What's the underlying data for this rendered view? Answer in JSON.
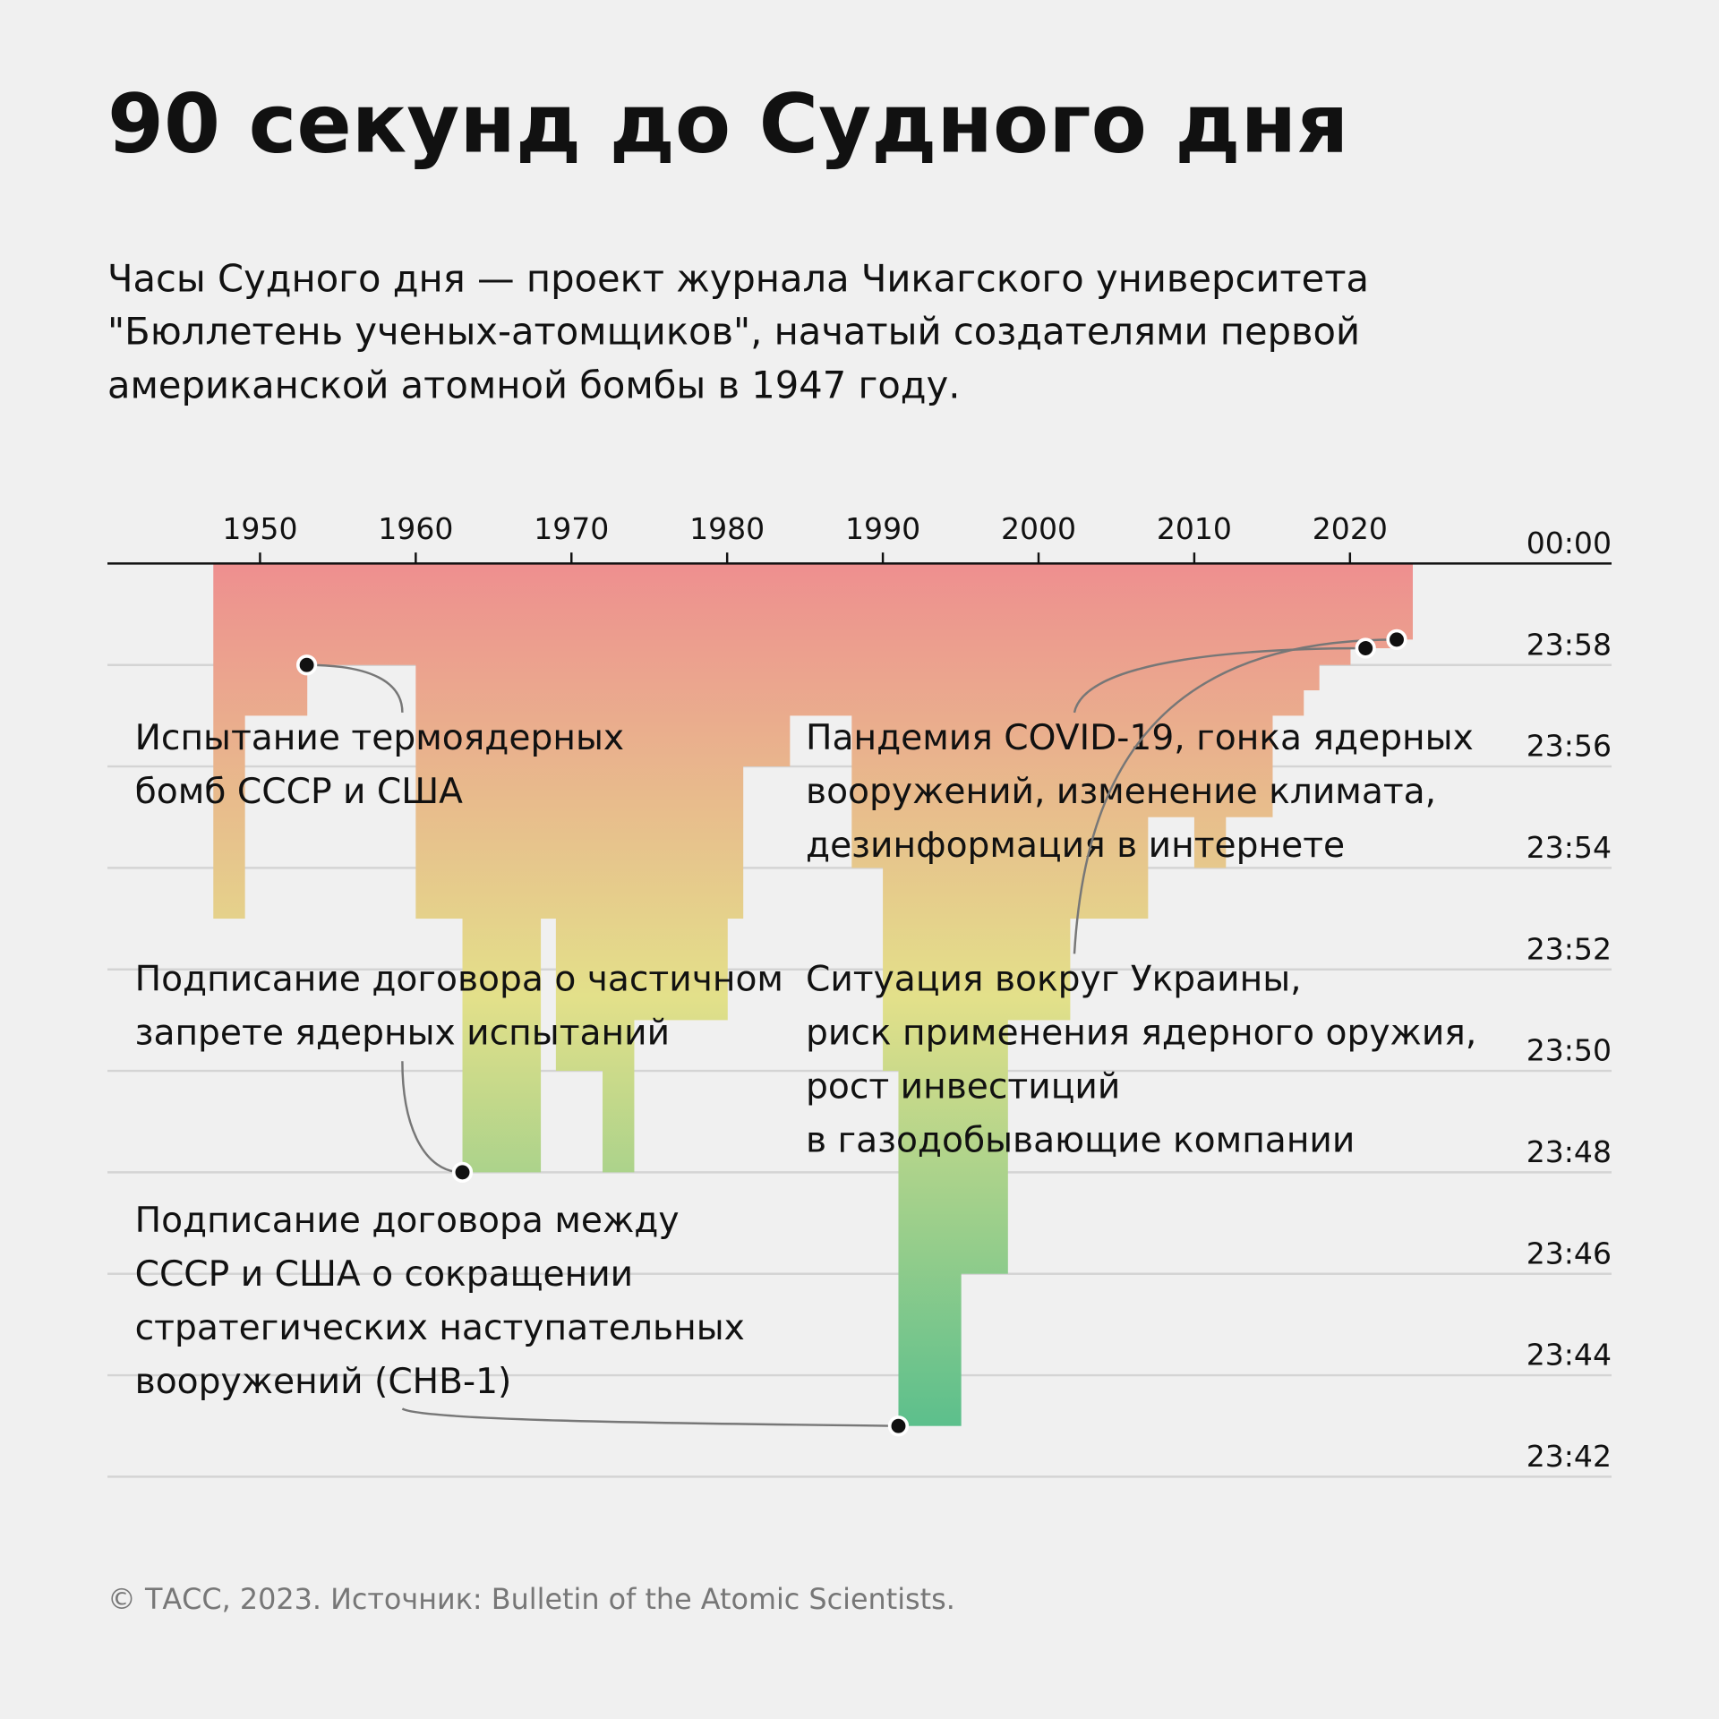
{
  "chart_data": {
    "type": "step",
    "title": "90 секунд до Судного дня",
    "subtitle": [
      "Часы Судного дня — проект журнала Чикагского университета",
      "\"Бюллетень ученых-атомщиков\", начатый создателями первой",
      "американской атомной бомбы в 1947 году."
    ],
    "source": "© ТАСС, 2023. Источник: Bulletin of the Atomic Scientists.",
    "x": [
      1947,
      1949,
      1953,
      1960,
      1963,
      1968,
      1969,
      1972,
      1974,
      1980,
      1981,
      1984,
      1988,
      1990,
      1991,
      1995,
      1998,
      2002,
      2007,
      2010,
      2012,
      2015,
      2017,
      2018,
      2020,
      2023
    ],
    "values": [
      7,
      3,
      2,
      7,
      12,
      7,
      10,
      12,
      9,
      7,
      4,
      3,
      6,
      10,
      17,
      14,
      9,
      7,
      5,
      6,
      5,
      3,
      2.5,
      2,
      1.67,
      1.5
    ],
    "gradient": [
      "#ee8f8f",
      "#e3e08a",
      "#5bbf8c"
    ],
    "xlim": [
      1940.2,
      2036.8
    ],
    "xticks": [
      1950,
      1960,
      1970,
      1980,
      1990,
      2000,
      2010,
      2020
    ],
    "ylim": [
      0,
      18
    ],
    "yticks": [
      {
        "value": 0,
        "label": "00:00"
      },
      {
        "value": 2,
        "label": "23:58"
      },
      {
        "value": 4,
        "label": "23:56"
      },
      {
        "value": 6,
        "label": "23:54"
      },
      {
        "value": 8,
        "label": "23:52"
      },
      {
        "value": 10,
        "label": "23:50"
      },
      {
        "value": 12,
        "label": "23:48"
      },
      {
        "value": 14,
        "label": "23:46"
      },
      {
        "value": 16,
        "label": "23:44"
      },
      {
        "value": 18,
        "label": "23:42"
      }
    ],
    "grid": true,
    "annotations": [
      {
        "text": [
          "Испытание термоядерных",
          "бомб СССР и США"
        ],
        "x": 1953,
        "y": 2
      },
      {
        "text": [
          "Подписание договора о частичном",
          "запрете ядерных испытаний"
        ],
        "x": 1963,
        "y": 12
      },
      {
        "text": [
          "Подписание договора между",
          "СССР и США о сокращении",
          "стратегических наступательных",
          "вооружений (СНВ-1)"
        ],
        "x": 1991,
        "y": 17
      },
      {
        "text": [
          "Пандемия COVID-19, гонка ядерных",
          "вооружений, изменение климата,",
          "дезинформация в интернете"
        ],
        "x": 2021,
        "y": 1.67
      },
      {
        "text": [
          "Ситуация вокруг Украины,",
          "риск применения ядерного оружия,",
          "рост инвестиций",
          "в газодобывающие компании"
        ],
        "x": 2023,
        "y": 1.5
      }
    ]
  }
}
